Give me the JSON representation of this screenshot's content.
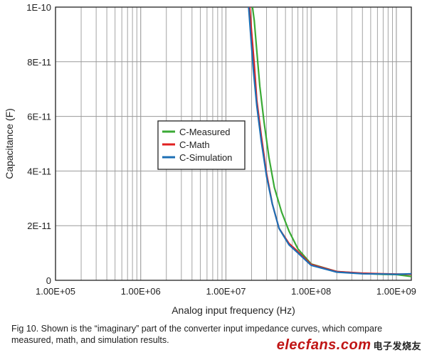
{
  "chart_data": {
    "type": "line",
    "title": "",
    "xlabel": "Analog input frequency (Hz)",
    "ylabel": "Capacitance (F)",
    "x_scale": "log",
    "xlim": [
      100000,
      1500000000
    ],
    "ylim": [
      0,
      1e-10
    ],
    "x_ticks": [
      100000,
      1000000,
      10000000,
      100000000,
      1000000000
    ],
    "x_tick_labels": [
      "1.00E+05",
      "1.00E+06",
      "1.00E+07",
      "1.00E+08",
      "1.00E+09"
    ],
    "y_ticks": [
      0,
      2e-11,
      4e-11,
      6e-11,
      8e-11,
      1e-10
    ],
    "y_tick_labels": [
      "0",
      "2E-11",
      "4E-11",
      "6E-11",
      "8E-11",
      "1E-10"
    ],
    "grid": true,
    "legend_position": "center-left",
    "series": [
      {
        "name": "C-Measured",
        "color": "#3aaa35",
        "x": [
          20500000,
          21500000,
          23000000,
          25000000,
          28000000,
          32000000,
          37000000,
          45000000,
          55000000,
          70000000,
          100000000,
          200000000,
          400000000,
          700000000,
          1000000000,
          1500000000
        ],
        "y": [
          1e-10,
          9.5e-11,
          8.4e-11,
          7.1e-11,
          5.8e-11,
          4.5e-11,
          3.4e-11,
          2.5e-11,
          1.8e-11,
          1.15e-11,
          6e-12,
          3.2e-12,
          2.5e-12,
          2.2e-12,
          2.1e-12,
          1.4e-12
        ]
      },
      {
        "name": "C-Math",
        "color": "#e02020",
        "x": [
          19000000,
          20000000,
          21500000,
          23000000,
          26000000,
          30000000,
          35000000,
          42000000,
          55000000,
          70000000,
          100000000,
          200000000,
          400000000,
          700000000,
          1000000000,
          1500000000
        ],
        "y": [
          1e-10,
          9.1e-11,
          7.9e-11,
          6.6e-11,
          5.3e-11,
          3.9e-11,
          2.8e-11,
          1.9e-11,
          1.35e-11,
          1.05e-11,
          5.8e-12,
          3.2e-12,
          2.6e-12,
          2.4e-12,
          2.3e-12,
          2.2e-12
        ]
      },
      {
        "name": "C-Simulation",
        "color": "#1d6fb5",
        "x": [
          18500000,
          19500000,
          21000000,
          23000000,
          26000000,
          30000000,
          35000000,
          42000000,
          55000000,
          70000000,
          100000000,
          200000000,
          400000000,
          700000000,
          1000000000,
          1500000000
        ],
        "y": [
          1e-10,
          9e-11,
          7.7e-11,
          6.4e-11,
          5.1e-11,
          3.8e-11,
          2.8e-11,
          1.9e-11,
          1.3e-11,
          1e-11,
          5.5e-12,
          3e-12,
          2.4e-12,
          2.3e-12,
          2.2e-12,
          2.4e-12
        ]
      }
    ]
  },
  "caption": "Fig 10. Shown is the “imaginary” part of the converter input impedance curves, which compare measured, math, and simulation results.",
  "watermark": {
    "brand": "elecfans.com",
    "cn": "电子发烧友"
  }
}
